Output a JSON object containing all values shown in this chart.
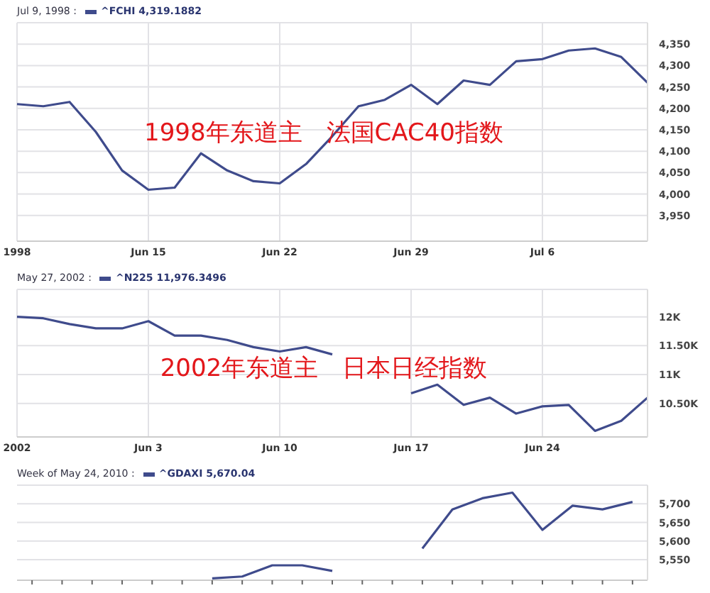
{
  "chart_data": [
    {
      "type": "line",
      "subtitle": "Jul 9, 1998 :",
      "legend": "top left",
      "grid": true,
      "marker": "none",
      "line_style": "solid",
      "annotations": [
        "1998年东道主　法国CAC40指数"
      ],
      "categories": [
        "1998",
        null,
        null,
        null,
        null,
        "Jun 15",
        null,
        null,
        null,
        null,
        "Jun 22",
        null,
        null,
        null,
        null,
        "Jun 29",
        null,
        null,
        null,
        null,
        "Jul 6",
        null,
        null,
        null,
        null
      ],
      "series": [
        {
          "name": "^FCHI 4,319.1882",
          "color": "#3f4b8c",
          "values": [
            4210,
            4205,
            4215,
            4145,
            4055,
            4010,
            4015,
            4095,
            4055,
            4030,
            4025,
            4070,
            4135,
            4205,
            4220,
            4255,
            4210,
            4265,
            4255,
            4310,
            4315,
            4335,
            4340,
            4320,
            4260
          ]
        }
      ],
      "ylim": [
        3890,
        4400
      ],
      "yticks": [
        {
          "value": 3950,
          "label": "3,950"
        },
        {
          "value": 4000,
          "label": "4,000"
        },
        {
          "value": 4050,
          "label": "4,050"
        },
        {
          "value": 4100,
          "label": "4,100"
        },
        {
          "value": 4150,
          "label": "4,150"
        },
        {
          "value": 4200,
          "label": "4,200"
        },
        {
          "value": 4250,
          "label": "4,250"
        },
        {
          "value": 4300,
          "label": "4,300"
        },
        {
          "value": 4350,
          "label": "4,350"
        }
      ]
    },
    {
      "type": "line",
      "subtitle": "May 27, 2002 :",
      "legend": "top left",
      "grid": true,
      "marker": "none",
      "line_style": "solid",
      "annotations": [
        "2002年东道主　日本日经指数"
      ],
      "categories": [
        "2002",
        null,
        null,
        null,
        null,
        "Jun 3",
        null,
        null,
        null,
        null,
        "Jun 10",
        null,
        null,
        null,
        null,
        "Jun 17",
        null,
        null,
        null,
        null,
        "Jun 24",
        null,
        null,
        null,
        null
      ],
      "series": [
        {
          "name": "^N225 11,976.3496",
          "color": "#3f4b8c",
          "values": [
            12000,
            11975,
            11875,
            11800,
            11800,
            11925,
            11675,
            11675,
            11600,
            11475,
            11400,
            11475,
            11350,
            null,
            null,
            10675,
            10825,
            10475,
            10600,
            10325,
            10450,
            10475,
            10025,
            10200,
            10600
          ]
        }
      ],
      "ylim": [
        9920,
        12475
      ],
      "yticks": [
        {
          "value": 10500,
          "label": "10.50K"
        },
        {
          "value": 11000,
          "label": "11K"
        },
        {
          "value": 11500,
          "label": "11.50K"
        },
        {
          "value": 12000,
          "label": "12K"
        }
      ]
    },
    {
      "type": "line",
      "subtitle": "Week of May 24, 2010 :",
      "legend": "top left",
      "grid": true,
      "marker": "none",
      "line_style": "solid",
      "tick_labels": "y",
      "categories": [
        null,
        null,
        null,
        null,
        null,
        null,
        null,
        null,
        null,
        null,
        null,
        null,
        null,
        null,
        null,
        null,
        null,
        null,
        null,
        null,
        null
      ],
      "series": [
        {
          "name": "^GDAXI 5,670.04",
          "color": "#3f4b8c",
          "values": [
            null,
            null,
            null,
            null,
            null,
            null,
            5500,
            5505,
            5535,
            5535,
            5520,
            null,
            null,
            5580,
            5685,
            5715,
            5730,
            5630,
            5695,
            5685,
            5705
          ]
        }
      ],
      "ylim": [
        5495,
        5750
      ],
      "yticks": [
        {
          "value": 5550,
          "label": "5,550"
        },
        {
          "value": 5600,
          "label": "5,600"
        },
        {
          "value": 5650,
          "label": "5,650"
        },
        {
          "value": 5700,
          "label": "5,700"
        }
      ]
    }
  ]
}
